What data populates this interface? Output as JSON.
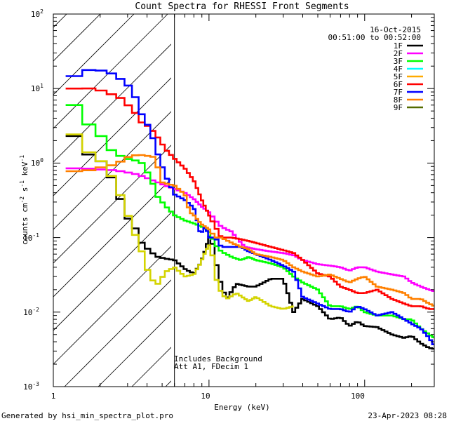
{
  "chart_data": {
    "type": "line",
    "title": "Count Spectra for RHESSI Front Segments",
    "xlabel": "Energy (keV)",
    "ylabel": "counts cm",
    "ylabel_sup1": "-2",
    "ylabel_mid": " s",
    "ylabel_sup2": "-1",
    "ylabel_mid2": " keV",
    "ylabel_sup3": "-1",
    "x_scale": "log",
    "y_scale": "log",
    "xlim": [
      1,
      280
    ],
    "ylim": [
      0.001,
      100
    ],
    "x_tick_labels": [
      "1",
      "10",
      "100"
    ],
    "y_tick_base": "10",
    "y_tick_exponents": [
      "-3",
      "-2",
      "-1",
      "0",
      "1",
      "2"
    ],
    "date_label": "16-Oct-2015",
    "time_range_label": "00:51:00 to 00:52:00",
    "annotation_line1": "Includes Background",
    "annotation_line2": "Att A1, FDecim 1",
    "footer_left": "Generated by hsi_min_spectra_plot.pro",
    "footer_right": "23-Apr-2023 08:28",
    "excluded_region_max_keV": 6,
    "legend_position": "top-right",
    "series": [
      {
        "name": "1F",
        "color": "#000000",
        "points": [
          [
            1.2,
            2.8
          ],
          [
            1.4,
            2.2
          ],
          [
            1.6,
            1.35
          ],
          [
            1.8,
            1.25
          ],
          [
            2.0,
            1.1
          ],
          [
            2.3,
            0.72
          ],
          [
            2.6,
            0.42
          ],
          [
            2.9,
            0.2
          ],
          [
            3.3,
            0.145
          ],
          [
            3.7,
            0.085
          ],
          [
            4.2,
            0.065
          ],
          [
            4.7,
            0.055
          ],
          [
            5.3,
            0.052
          ],
          [
            6,
            0.05
          ],
          [
            7,
            0.038
          ],
          [
            7.5,
            0.035
          ],
          [
            8,
            0.033
          ],
          [
            8.8,
            0.045
          ],
          [
            9.5,
            0.07
          ],
          [
            10,
            0.105
          ],
          [
            10.5,
            0.085
          ],
          [
            11,
            0.05
          ],
          [
            12,
            0.023
          ],
          [
            13,
            0.015
          ],
          [
            15,
            0.024
          ],
          [
            18,
            0.022
          ],
          [
            20,
            0.022
          ],
          [
            25,
            0.028
          ],
          [
            30,
            0.028
          ],
          [
            35,
            0.01
          ],
          [
            40,
            0.015
          ],
          [
            50,
            0.012
          ],
          [
            60,
            0.008
          ],
          [
            70,
            0.0085
          ],
          [
            80,
            0.0065
          ],
          [
            90,
            0.0075
          ],
          [
            100,
            0.0065
          ],
          [
            120,
            0.0063
          ],
          [
            150,
            0.005
          ],
          [
            180,
            0.0045
          ],
          [
            200,
            0.0048
          ],
          [
            230,
            0.0038
          ],
          [
            260,
            0.0033
          ],
          [
            280,
            0.0032
          ]
        ]
      },
      {
        "name": "2F",
        "color": "#ff00ff",
        "points": [
          [
            1.2,
            0.85
          ],
          [
            1.5,
            0.85
          ],
          [
            1.8,
            0.84
          ],
          [
            2.0,
            0.82
          ],
          [
            2.5,
            0.8
          ],
          [
            3.0,
            0.75
          ],
          [
            3.5,
            0.7
          ],
          [
            4.0,
            0.63
          ],
          [
            4.5,
            0.57
          ],
          [
            5.0,
            0.52
          ],
          [
            5.5,
            0.48
          ],
          [
            6,
            0.45
          ],
          [
            7,
            0.4
          ],
          [
            8,
            0.33
          ],
          [
            9,
            0.26
          ],
          [
            10,
            0.22
          ],
          [
            11,
            0.17
          ],
          [
            12,
            0.14
          ],
          [
            14,
            0.12
          ],
          [
            15,
            0.1
          ],
          [
            17,
            0.075
          ],
          [
            20,
            0.07
          ],
          [
            25,
            0.065
          ],
          [
            30,
            0.062
          ],
          [
            35,
            0.058
          ],
          [
            40,
            0.05
          ],
          [
            50,
            0.044
          ],
          [
            60,
            0.042
          ],
          [
            70,
            0.04
          ],
          [
            80,
            0.036
          ],
          [
            90,
            0.04
          ],
          [
            100,
            0.04
          ],
          [
            120,
            0.035
          ],
          [
            150,
            0.032
          ],
          [
            180,
            0.03
          ],
          [
            200,
            0.025
          ],
          [
            230,
            0.022
          ],
          [
            260,
            0.02
          ],
          [
            280,
            0.019
          ]
        ]
      },
      {
        "name": "3F",
        "color": "#00ff00",
        "points": [
          [
            1.2,
            8.5
          ],
          [
            1.4,
            5.5
          ],
          [
            1.6,
            3.3
          ],
          [
            1.8,
            3.3
          ],
          [
            2.0,
            2.4
          ],
          [
            2.3,
            1.55
          ],
          [
            2.6,
            1.3
          ],
          [
            2.9,
            1.15
          ],
          [
            3.3,
            1.1
          ],
          [
            3.7,
            1.0
          ],
          [
            4.2,
            0.65
          ],
          [
            4.7,
            0.35
          ],
          [
            5.3,
            0.26
          ],
          [
            6,
            0.2
          ],
          [
            7,
            0.17
          ],
          [
            8,
            0.155
          ],
          [
            9,
            0.14
          ],
          [
            10,
            0.12
          ],
          [
            11,
            0.08
          ],
          [
            12,
            0.065
          ],
          [
            14,
            0.055
          ],
          [
            16,
            0.05
          ],
          [
            18,
            0.055
          ],
          [
            20,
            0.05
          ],
          [
            25,
            0.045
          ],
          [
            30,
            0.04
          ],
          [
            35,
            0.03
          ],
          [
            40,
            0.025
          ],
          [
            50,
            0.02
          ],
          [
            60,
            0.012
          ],
          [
            70,
            0.012
          ],
          [
            80,
            0.011
          ],
          [
            90,
            0.012
          ],
          [
            100,
            0.01
          ],
          [
            120,
            0.009
          ],
          [
            150,
            0.009
          ],
          [
            180,
            0.008
          ],
          [
            200,
            0.008
          ],
          [
            230,
            0.006
          ],
          [
            260,
            0.005
          ],
          [
            280,
            0.0045
          ]
        ]
      },
      {
        "name": "4F",
        "color": "#00ffff",
        "points": []
      },
      {
        "name": "5F",
        "color": "#ffaa00",
        "points": []
      },
      {
        "name": "6F",
        "color": "#ff0000",
        "points": [
          [
            1.2,
            10
          ],
          [
            1.4,
            10
          ],
          [
            1.6,
            10.5
          ],
          [
            1.8,
            9.5
          ],
          [
            2.0,
            9.5
          ],
          [
            2.3,
            8.5
          ],
          [
            2.6,
            8.0
          ],
          [
            2.9,
            6.5
          ],
          [
            3.3,
            5.0
          ],
          [
            3.7,
            3.5
          ],
          [
            4.2,
            3.0
          ],
          [
            4.7,
            2.2
          ],
          [
            5.3,
            1.5
          ],
          [
            6,
            1.15
          ],
          [
            7,
            0.85
          ],
          [
            8,
            0.58
          ],
          [
            9,
            0.32
          ],
          [
            10,
            0.2
          ],
          [
            11,
            0.14
          ],
          [
            12,
            0.1
          ],
          [
            14,
            0.1
          ],
          [
            16,
            0.095
          ],
          [
            18,
            0.09
          ],
          [
            20,
            0.085
          ],
          [
            25,
            0.075
          ],
          [
            30,
            0.068
          ],
          [
            35,
            0.062
          ],
          [
            40,
            0.05
          ],
          [
            50,
            0.033
          ],
          [
            60,
            0.03
          ],
          [
            70,
            0.022
          ],
          [
            80,
            0.02
          ],
          [
            90,
            0.018
          ],
          [
            100,
            0.018
          ],
          [
            120,
            0.02
          ],
          [
            150,
            0.015
          ],
          [
            180,
            0.013
          ],
          [
            200,
            0.012
          ],
          [
            230,
            0.012
          ],
          [
            260,
            0.011
          ],
          [
            280,
            0.011
          ]
        ]
      },
      {
        "name": "7F",
        "color": "#0000ff",
        "points": [
          [
            1.2,
            13.5
          ],
          [
            1.4,
            15
          ],
          [
            1.6,
            17.5
          ],
          [
            1.8,
            18
          ],
          [
            2.0,
            17.5
          ],
          [
            2.3,
            16.5
          ],
          [
            2.6,
            14
          ],
          [
            2.9,
            12.5
          ],
          [
            3.3,
            8.5
          ],
          [
            3.7,
            4.5
          ],
          [
            4.2,
            2.8
          ],
          [
            4.7,
            1.3
          ],
          [
            5.3,
            0.65
          ],
          [
            6,
            0.38
          ],
          [
            7,
            0.32
          ],
          [
            8,
            0.25
          ],
          [
            8.8,
            0.11
          ],
          [
            9.5,
            0.14
          ],
          [
            10,
            0.1
          ],
          [
            11,
            0.1
          ],
          [
            12,
            0.075
          ],
          [
            14,
            0.075
          ],
          [
            16,
            0.075
          ],
          [
            18,
            0.065
          ],
          [
            20,
            0.06
          ],
          [
            25,
            0.05
          ],
          [
            30,
            0.042
          ],
          [
            35,
            0.035
          ],
          [
            40,
            0.016
          ],
          [
            50,
            0.013
          ],
          [
            60,
            0.011
          ],
          [
            70,
            0.011
          ],
          [
            80,
            0.01
          ],
          [
            90,
            0.012
          ],
          [
            100,
            0.011
          ],
          [
            120,
            0.009
          ],
          [
            150,
            0.01
          ],
          [
            180,
            0.008
          ],
          [
            200,
            0.007
          ],
          [
            230,
            0.006
          ],
          [
            260,
            0.0045
          ],
          [
            280,
            0.0035
          ]
        ]
      },
      {
        "name": "8F",
        "color": "#ff8000",
        "points": [
          [
            1.2,
            0.75
          ],
          [
            1.5,
            0.8
          ],
          [
            1.8,
            0.8
          ],
          [
            2.1,
            0.9
          ],
          [
            2.5,
            0.95
          ],
          [
            3.0,
            1.2
          ],
          [
            3.5,
            1.3
          ],
          [
            4.0,
            1.25
          ],
          [
            4.5,
            1.2
          ],
          [
            5.0,
            0.55
          ],
          [
            5.5,
            0.52
          ],
          [
            6,
            0.5
          ],
          [
            7,
            0.38
          ],
          [
            7.5,
            0.22
          ],
          [
            8.0,
            0.2
          ],
          [
            8.5,
            0.17
          ],
          [
            9,
            0.15
          ],
          [
            10,
            0.13
          ],
          [
            11,
            0.1
          ],
          [
            12,
            0.1
          ],
          [
            14,
            0.085
          ],
          [
            16,
            0.075
          ],
          [
            18,
            0.07
          ],
          [
            20,
            0.06
          ],
          [
            25,
            0.055
          ],
          [
            30,
            0.05
          ],
          [
            35,
            0.04
          ],
          [
            40,
            0.035
          ],
          [
            50,
            0.03
          ],
          [
            60,
            0.032
          ],
          [
            70,
            0.028
          ],
          [
            80,
            0.025
          ],
          [
            90,
            0.028
          ],
          [
            100,
            0.03
          ],
          [
            120,
            0.022
          ],
          [
            150,
            0.02
          ],
          [
            180,
            0.018
          ],
          [
            200,
            0.015
          ],
          [
            230,
            0.015
          ],
          [
            260,
            0.013
          ],
          [
            280,
            0.012
          ]
        ]
      },
      {
        "name": "9F",
        "color": "#556b00",
        "points": []
      },
      {
        "name": "yellow",
        "color": "#d4d400",
        "legend": false,
        "points": [
          [
            1.2,
            2.5
          ],
          [
            1.4,
            2.4
          ],
          [
            1.6,
            1.6
          ],
          [
            1.8,
            1.2
          ],
          [
            2.0,
            1.1
          ],
          [
            2.3,
            0.75
          ],
          [
            2.6,
            0.45
          ],
          [
            2.9,
            0.25
          ],
          [
            3.3,
            0.12
          ],
          [
            3.7,
            0.065
          ],
          [
            4.2,
            0.028
          ],
          [
            4.7,
            0.024
          ],
          [
            5.3,
            0.035
          ],
          [
            6,
            0.04
          ],
          [
            7,
            0.03
          ],
          [
            8,
            0.032
          ],
          [
            8.8,
            0.045
          ],
          [
            9.5,
            0.065
          ],
          [
            10,
            0.08
          ],
          [
            10.5,
            0.06
          ],
          [
            11,
            0.03
          ],
          [
            12,
            0.018
          ],
          [
            13,
            0.015
          ],
          [
            15,
            0.018
          ],
          [
            18,
            0.014
          ],
          [
            20,
            0.016
          ],
          [
            25,
            0.012
          ],
          [
            30,
            0.011
          ],
          [
            35,
            0.012
          ]
        ]
      }
    ]
  }
}
